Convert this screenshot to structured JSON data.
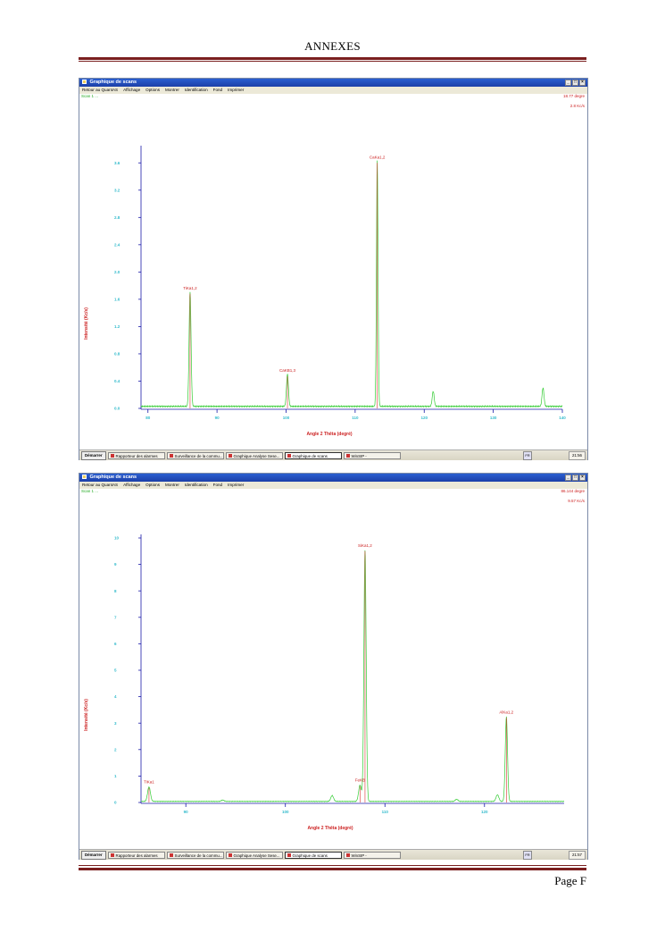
{
  "page": {
    "header": "ANNEXES",
    "footer": "Page F"
  },
  "window": {
    "title": "Graphique de scans",
    "menu": [
      "Retour au QuantAS",
      "Affichage",
      "Options",
      "Montrer",
      "Identification",
      "Fond",
      "Imprimer"
    ]
  },
  "taskbar": {
    "start": "Démarrer",
    "items": [
      "Rapporteur des alarmes",
      "Surveillance de la commu...",
      "Graphique Analyse Sese...",
      "Graphique de scans",
      "WinSIP -"
    ]
  },
  "screenshots": [
    {
      "status_line": "Scan 1 ...",
      "readout_angle": "18.77 degre",
      "readout_intensity": "2.8 Kc/s",
      "clock": "21:56",
      "peak_labels": [
        "TiKa1,2",
        "CaKB1,3",
        "CaKa1,2"
      ]
    },
    {
      "status_line": "Scan 1 ...",
      "readout_angle": "86.144 degre",
      "readout_intensity": "9.57 Kc/s",
      "clock": "21:57",
      "peak_labels": [
        "TiKa1",
        "FeKB",
        "SiKa1,2",
        "AlKa1,2"
      ]
    }
  ],
  "chart_data": [
    {
      "type": "line",
      "xlabel": "Angle 2 Thêta (degré)",
      "ylabel": "Intensité (Kc/s)",
      "x_ticks": [
        "80",
        "90",
        "100",
        "110",
        "120",
        "130",
        "140"
      ],
      "y_ticks": [
        "0.0",
        "0.4",
        "0.8",
        "1.2",
        "1.6",
        "2.0",
        "2.4",
        "2.8",
        "3.2",
        "3.6"
      ],
      "xlim": [
        79,
        140
      ],
      "ylim": [
        0,
        3.8
      ],
      "grid": false,
      "line_color": "#33cc33",
      "baseline": 0.03,
      "peaks": [
        {
          "x": 86.1,
          "y": 1.68,
          "label": "TiKa1,2"
        },
        {
          "x": 100.2,
          "y": 0.47,
          "label": "CaKB1,3"
        },
        {
          "x": 113.2,
          "y": 3.6,
          "label": "CaKa1,2"
        },
        {
          "x": 121.3,
          "y": 0.22
        },
        {
          "x": 137.2,
          "y": 0.27
        }
      ]
    },
    {
      "type": "line",
      "xlabel": "Angle 2 Thêta (degré)",
      "ylabel": "Intensité (Kc/s)",
      "x_ticks": [
        "90",
        "100",
        "110",
        "120"
      ],
      "y_ticks": [
        "0",
        "1",
        "2",
        "3",
        "4",
        "5",
        "6",
        "7",
        "8",
        "9",
        "10"
      ],
      "xlim": [
        85.5,
        128
      ],
      "ylim": [
        0,
        10
      ],
      "grid": false,
      "line_color": "#33cc33",
      "baseline": 0.04,
      "peaks": [
        {
          "x": 86.3,
          "y": 0.55,
          "label": "TiKa1"
        },
        {
          "x": 93.7,
          "y": 0.05
        },
        {
          "x": 104.7,
          "y": 0.22
        },
        {
          "x": 107.5,
          "y": 0.62,
          "label": "FeKB"
        },
        {
          "x": 108.0,
          "y": 9.5,
          "label": "SiKa1,2"
        },
        {
          "x": 117.2,
          "y": 0.08
        },
        {
          "x": 121.3,
          "y": 0.25
        },
        {
          "x": 122.2,
          "y": 3.2,
          "label": "AlKa1,2"
        }
      ]
    }
  ]
}
